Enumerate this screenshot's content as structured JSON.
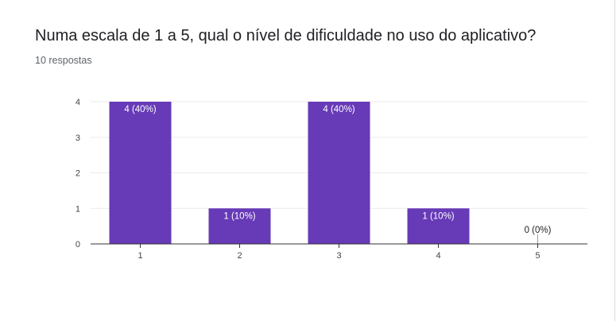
{
  "question": {
    "title": "Numa escala de 1 a 5, qual o nível de dificuldade no uso do aplicativo?",
    "responses": "10 respostas"
  },
  "colors": {
    "bar": "#673ab7",
    "label_inside": "#ffffff",
    "label_outside": "#202124",
    "grid": "#ebebeb",
    "axis": "#333333"
  },
  "chart_data": {
    "type": "bar",
    "categories": [
      "1",
      "2",
      "3",
      "4",
      "5"
    ],
    "values": [
      4,
      1,
      4,
      1,
      0
    ],
    "data_labels": [
      "4 (40%)",
      "1 (10%)",
      "4 (40%)",
      "1 (10%)",
      "0 (0%)"
    ],
    "yticks": [
      "0",
      "1",
      "2",
      "3",
      "4"
    ],
    "ylim": [
      0,
      4
    ],
    "grid": true,
    "legend": "none"
  }
}
